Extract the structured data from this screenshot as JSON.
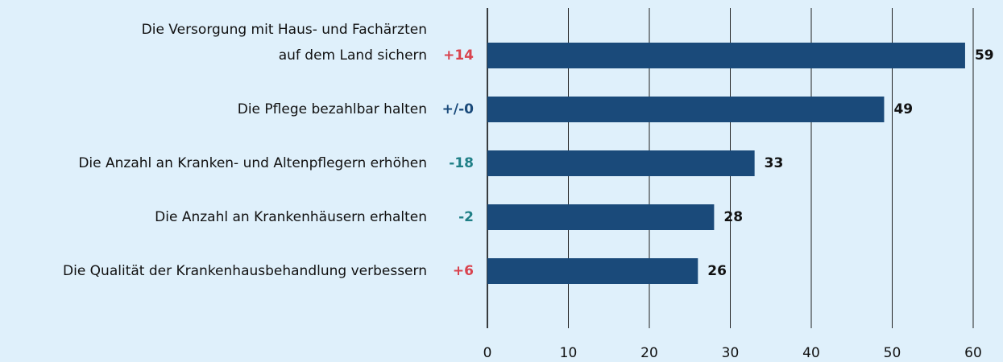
{
  "chart_data": {
    "type": "hbar",
    "categories": [
      [
        "Die Versorgung mit Haus- und Fachärzten",
        "auf dem Land sichern"
      ],
      [
        "Die Pflege bezahlbar halten"
      ],
      [
        "Die Anzahl an Kranken- und Altenpflegern erhöhen"
      ],
      [
        "Die Anzahl an Krankenhäusern erhalten"
      ],
      [
        "Die Qualität der Krankenhausbehandlung verbessern"
      ]
    ],
    "values": [
      59,
      49,
      33,
      28,
      26
    ],
    "changes": [
      "+14",
      "+/-0",
      "-18",
      "-2",
      "+6"
    ],
    "change_colors": [
      "#d9434e",
      "#1a4a7a",
      "#1f7f86",
      "#1f7f86",
      "#d9434e"
    ],
    "color": "#1a4a7a",
    "xlim": [
      0,
      60
    ],
    "xticks": [
      0,
      10,
      20,
      30,
      40,
      50,
      60
    ],
    "grid": true
  }
}
